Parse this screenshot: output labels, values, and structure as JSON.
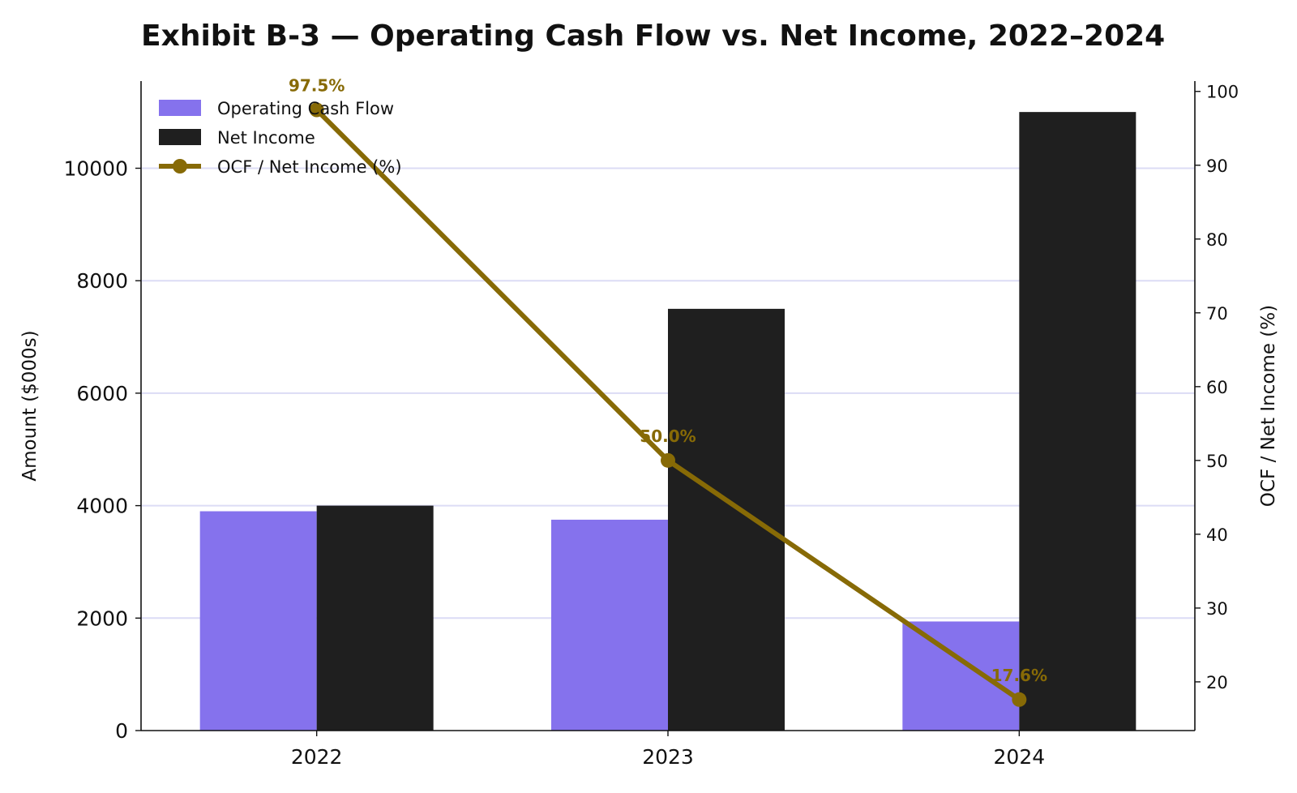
{
  "chart_data": {
    "type": "bar",
    "title": "Exhibit B-3 — Operating Cash Flow vs. Net Income, 2022–2024",
    "categories": [
      "2022",
      "2023",
      "2024"
    ],
    "series": [
      {
        "name": "Operating Cash Flow",
        "type": "bar",
        "axis": "left",
        "color": "#8572ED",
        "values": [
          3900,
          3750,
          1940
        ]
      },
      {
        "name": "Net Income",
        "type": "bar",
        "axis": "left",
        "color": "#1F1F1F",
        "values": [
          4000,
          7500,
          11000
        ]
      },
      {
        "name": "OCF / Net Income (%)",
        "type": "line",
        "axis": "right",
        "color": "#876A06",
        "values": [
          97.5,
          50.0,
          17.6
        ]
      }
    ],
    "data_labels": [
      "97.5%",
      "50.0%",
      "17.6%"
    ],
    "ylabel": "Amount ($000s)",
    "ylabel_right": "OCF / Net Income (%)",
    "ylim": [
      0,
      11550
    ],
    "ylim_right": [
      13.4,
      101.4
    ],
    "yticks": [
      0,
      2000,
      4000,
      6000,
      8000,
      10000
    ],
    "yticks_right": [
      20,
      30,
      40,
      50,
      60,
      70,
      80,
      90,
      100
    ],
    "grid": "horizontal",
    "grid_color": "#DCDCF5",
    "legend_position": "top-left"
  }
}
